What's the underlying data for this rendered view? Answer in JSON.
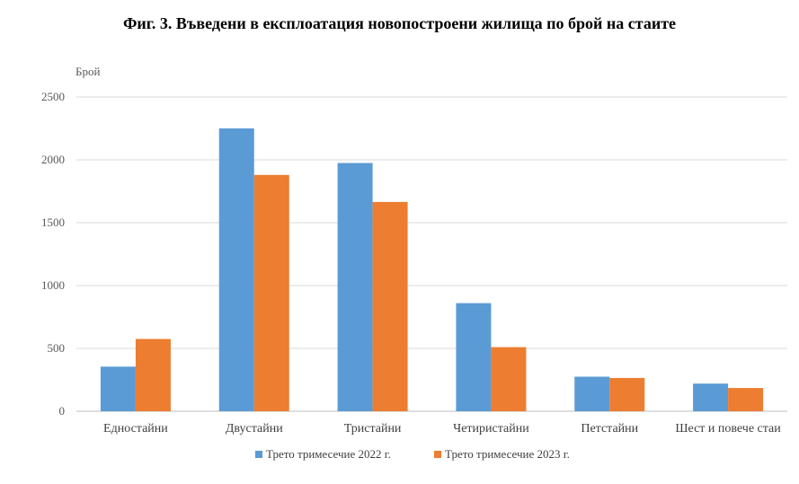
{
  "chart_data": {
    "type": "bar",
    "title": "Фиг. 3. Въведени в експлоатация новопостроени жилища по брой на стаите",
    "ylabel": "Брой",
    "xlabel": "",
    "categories": [
      "Едностайни",
      "Двустайни",
      "Тристайни",
      "Четиристайни",
      "Петстайни",
      "Шест и повече стаи"
    ],
    "series": [
      {
        "name": "Трето тримесечие 2022  г.",
        "color": "#5B9BD5",
        "values": [
          355,
          2250,
          1975,
          860,
          275,
          220
        ]
      },
      {
        "name": "Трето тримесечие 2023  г.",
        "color": "#ED7D31",
        "values": [
          575,
          1880,
          1665,
          510,
          265,
          185
        ]
      }
    ],
    "ylim": [
      0,
      2500
    ],
    "yticks": [
      0,
      500,
      1000,
      1500,
      2000,
      2500
    ],
    "grid": true,
    "legend_position": "bottom"
  }
}
